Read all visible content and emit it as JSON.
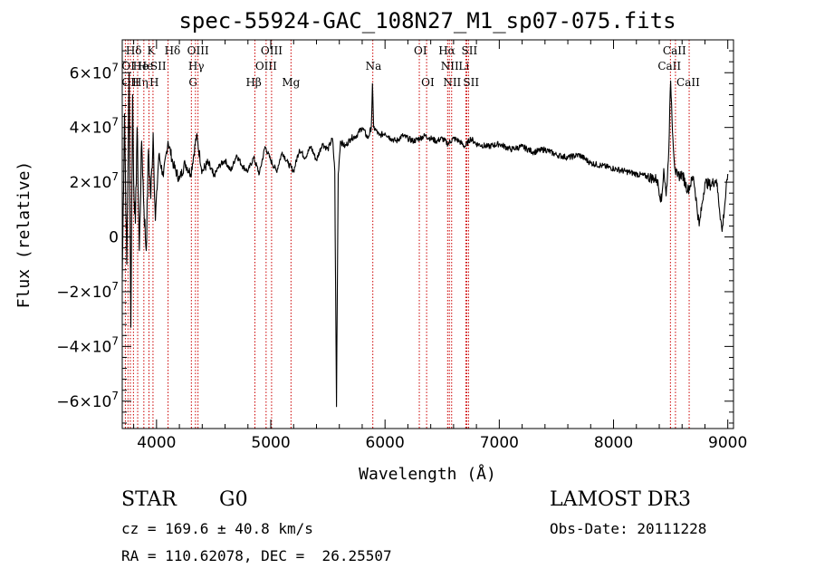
{
  "chart_data": {
    "type": "line",
    "title": "spec-55924-GAC_108N27_M1_sp07-075.fits",
    "xlabel": "Wavelength (Å)",
    "ylabel": "Flux (relative)",
    "xlim": [
      3700,
      9050
    ],
    "ylim": [
      -70000000,
      72000000
    ],
    "x_ticks": [
      {
        "value": 4000,
        "label": "4000"
      },
      {
        "value": 5000,
        "label": "5000"
      },
      {
        "value": 6000,
        "label": "6000"
      },
      {
        "value": 7000,
        "label": "7000"
      },
      {
        "value": 8000,
        "label": "8000"
      },
      {
        "value": 9000,
        "label": "9000"
      }
    ],
    "y_ticks": [
      {
        "value": 60000000,
        "mant": "6×10",
        "exp": "7"
      },
      {
        "value": 40000000,
        "mant": "4×10",
        "exp": "7"
      },
      {
        "value": 20000000,
        "mant": "2×10",
        "exp": "7"
      },
      {
        "value": 0,
        "mant": "0",
        "exp": ""
      },
      {
        "value": -20000000,
        "mant": "−2×10",
        "exp": "7"
      },
      {
        "value": -40000000,
        "mant": "−4×10",
        "exp": "7"
      },
      {
        "value": -60000000,
        "mant": "−6×10",
        "exp": "7"
      }
    ],
    "spectrum": {
      "x": [
        3700,
        3720,
        3740,
        3760,
        3775,
        3790,
        3800,
        3815,
        3830,
        3850,
        3870,
        3890,
        3910,
        3930,
        3950,
        3970,
        3990,
        4020,
        4060,
        4100,
        4150,
        4200,
        4250,
        4300,
        4350,
        4400,
        4450,
        4500,
        4550,
        4600,
        4650,
        4700,
        4750,
        4800,
        4850,
        4900,
        4950,
        5000,
        5050,
        5100,
        5150,
        5200,
        5250,
        5300,
        5350,
        5400,
        5450,
        5500,
        5540,
        5560,
        5575,
        5590,
        5610,
        5650,
        5700,
        5750,
        5800,
        5850,
        5880,
        5890,
        5900,
        5920,
        5950,
        6000,
        6050,
        6100,
        6150,
        6200,
        6250,
        6300,
        6350,
        6400,
        6450,
        6500,
        6550,
        6600,
        6650,
        6700,
        6750,
        6800,
        6900,
        7000,
        7100,
        7200,
        7300,
        7400,
        7500,
        7600,
        7700,
        7800,
        7900,
        8000,
        8100,
        8200,
        8300,
        8380,
        8420,
        8440,
        8460,
        8480,
        8500,
        8520,
        8540,
        8560,
        8600,
        8650,
        8700,
        8750,
        8800,
        8850,
        8900,
        8950,
        9000
      ],
      "y": [
        -15000000,
        45000000,
        -10000000,
        60000000,
        -33000000,
        52000000,
        20000000,
        5000000,
        40000000,
        -5000000,
        35000000,
        10000000,
        -5000000,
        32000000,
        14000000,
        38000000,
        6000000,
        30000000,
        22000000,
        35000000,
        26000000,
        21000000,
        27000000,
        23000000,
        37000000,
        24000000,
        27000000,
        22000000,
        26000000,
        28000000,
        24000000,
        30000000,
        26000000,
        24000000,
        29000000,
        23000000,
        33000000,
        28000000,
        24000000,
        31000000,
        27000000,
        24000000,
        32000000,
        29000000,
        33000000,
        28000000,
        34000000,
        32000000,
        36000000,
        24000000,
        -62000000,
        23000000,
        35000000,
        33000000,
        36000000,
        37000000,
        40000000,
        36000000,
        40000000,
        56000000,
        40000000,
        39000000,
        37000000,
        38000000,
        36000000,
        35000000,
        37000000,
        36000000,
        35000000,
        36000000,
        37000000,
        36000000,
        35000000,
        36000000,
        34000000,
        36000000,
        35000000,
        33000000,
        36000000,
        34000000,
        33000000,
        34000000,
        32000000,
        33000000,
        31000000,
        32000000,
        30000000,
        29000000,
        30000000,
        27000000,
        26000000,
        25000000,
        24000000,
        23000000,
        22000000,
        21000000,
        13000000,
        25000000,
        15000000,
        28000000,
        57000000,
        36000000,
        24000000,
        22000000,
        23000000,
        17000000,
        22000000,
        4000000,
        20000000,
        19000000,
        21000000,
        2000000,
        23000000
      ]
    },
    "lines": [
      {
        "wl": 3727,
        "label": "OII",
        "row": 2,
        "dx": -4
      },
      {
        "wl": 3750,
        "label": "",
        "row": 0
      },
      {
        "wl": 3771,
        "label": "",
        "row": 0
      },
      {
        "wl": 3798,
        "label": "",
        "row": 0
      },
      {
        "wl": 3835,
        "label": "Hη",
        "row": 2,
        "dx": -6
      },
      {
        "wl": 3889,
        "label": "Hδ",
        "row": 0,
        "dx": -20
      },
      {
        "wl": 3934,
        "label": "K",
        "row": 0,
        "dx": -2
      },
      {
        "wl": 3969,
        "label": "H",
        "row": 2,
        "dx": -4
      },
      {
        "wl": 4101,
        "label": "Hδ",
        "row": 0,
        "dx": -4
      },
      {
        "wl": 4305,
        "label": "G",
        "row": 2,
        "dx": -3
      },
      {
        "wl": 4341,
        "label": "Hγ",
        "row": 1,
        "dx": -8
      },
      {
        "wl": 4363,
        "label": "OIII",
        "row": 0,
        "dx": -12
      },
      {
        "wl": 4861,
        "label": "Hβ",
        "row": 2,
        "dx": -10
      },
      {
        "wl": 4959,
        "label": "OIII",
        "row": 1,
        "dx": -12
      },
      {
        "wl": 5007,
        "label": "OIII",
        "row": 0,
        "dx": -12
      },
      {
        "wl": 5177,
        "label": "Mg",
        "row": 2,
        "dx": -10
      },
      {
        "wl": 5893,
        "label": "Na",
        "row": 1,
        "dx": -8
      },
      {
        "wl": 6300,
        "label": "OI",
        "row": 0,
        "dx": -6
      },
      {
        "wl": 6364,
        "label": "OI",
        "row": 2,
        "dx": -6
      },
      {
        "wl": 6548,
        "label": "NII",
        "row": 2,
        "dx": -5
      },
      {
        "wl": 6563,
        "label": "Hα",
        "row": 0,
        "dx": -12
      },
      {
        "wl": 6583,
        "label": "NII",
        "row": 1,
        "dx": -12
      },
      {
        "wl": 6707,
        "label": "Li",
        "row": 1,
        "dx": -8
      },
      {
        "wl": 6716,
        "label": "SII",
        "row": 0,
        "dx": -6
      },
      {
        "wl": 6731,
        "label": "SII",
        "row": 2,
        "dx": -6
      },
      {
        "wl": 8498,
        "label": "CaII",
        "row": 1,
        "dx": -14
      },
      {
        "wl": 8542,
        "label": "CaII",
        "row": 0,
        "dx": -14
      },
      {
        "wl": 8662,
        "label": "CaII",
        "row": 2,
        "dx": -14
      }
    ],
    "extra_labels": [
      {
        "label": "OI",
        "at": 3727,
        "row": 1,
        "dx": -4
      },
      {
        "label": "He",
        "at": 3760,
        "row": 1,
        "dx": 4
      },
      {
        "label": "He",
        "at": 3880,
        "row": 1,
        "dx": -6
      },
      {
        "label": "SII",
        "at": 3945,
        "row": 1,
        "dx": 0
      }
    ]
  },
  "info": {
    "object_class": "STAR",
    "subclass": "G0",
    "survey": "LAMOST DR3",
    "cz": "cz = 169.6 ± 40.8 km/s",
    "obs_date": "Obs-Date: 20111228",
    "coords": "RA = 110.62078, DEC =  26.25507"
  }
}
